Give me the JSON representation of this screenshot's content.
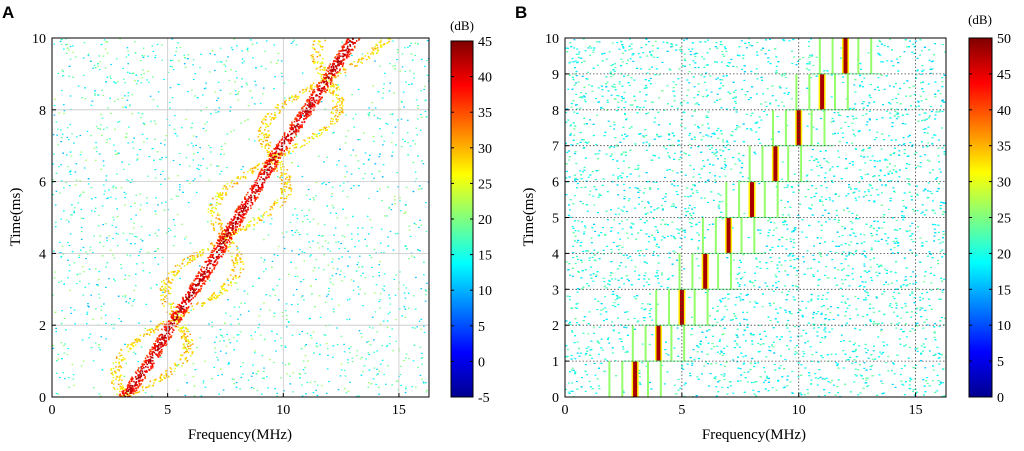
{
  "chart_data": [
    {
      "type": "heatmap",
      "panel_label": "A",
      "title": "",
      "xlabel": "Frequency(MHz)",
      "ylabel": "Time(ms)",
      "xlim": [
        0,
        16.3
      ],
      "ylim": [
        0,
        10
      ],
      "xticks": [
        "0",
        "5",
        "10",
        "15"
      ],
      "yticks": [
        "0",
        "2",
        "4",
        "6",
        "8",
        "10"
      ],
      "grid": true,
      "colorbar": {
        "label": "(dB)",
        "min": -5,
        "max": 45,
        "ticks": [
          "45",
          "40",
          "35",
          "30",
          "25",
          "20",
          "15",
          "10",
          "5",
          "0",
          "-5"
        ]
      },
      "signal": "sinusoidal frequency sweep from 3 MHz at 0 ms to 13 MHz at 10 ms with ~45 dB main ridge and ~28 dB sidebands crossing at 2.2, 4.5, 6.7 and 8.8 ms",
      "main_ridge": {
        "time_ms": [
          0,
          1,
          2,
          2.2,
          3,
          4,
          4.5,
          5,
          6,
          6.7,
          7,
          8,
          8.8,
          9,
          10
        ],
        "freq_mhz": [
          3.1,
          4.2,
          5.1,
          5.3,
          6.1,
          7.1,
          7.5,
          8.0,
          9.0,
          9.6,
          9.9,
          11.0,
          11.8,
          12.0,
          13.0
        ]
      }
    },
    {
      "type": "heatmap",
      "panel_label": "B",
      "title": "",
      "xlabel": "Frequency(MHz)",
      "ylabel": "Time(ms)",
      "xlim": [
        0,
        16.3
      ],
      "ylim": [
        0,
        10
      ],
      "xticks": [
        "0",
        "5",
        "10",
        "15"
      ],
      "yticks": [
        "0",
        "1",
        "2",
        "3",
        "4",
        "5",
        "6",
        "7",
        "8",
        "9",
        "10"
      ],
      "grid": true,
      "colorbar": {
        "label": "(dB)",
        "min": 0,
        "max": 50,
        "ticks": [
          "50",
          "45",
          "40",
          "35",
          "30",
          "25",
          "20",
          "15",
          "10",
          "5",
          "0"
        ]
      },
      "signal": "stepped frequency: one 1 ms step per MHz, ~50 dB line at each step center with ~25 dB side lines",
      "steps": [
        {
          "t0": 0,
          "t1": 1,
          "freq_mhz": 3
        },
        {
          "t0": 1,
          "t1": 2,
          "freq_mhz": 4
        },
        {
          "t0": 2,
          "t1": 3,
          "freq_mhz": 5
        },
        {
          "t0": 3,
          "t1": 4,
          "freq_mhz": 6
        },
        {
          "t0": 4,
          "t1": 5,
          "freq_mhz": 7
        },
        {
          "t0": 5,
          "t1": 6,
          "freq_mhz": 8
        },
        {
          "t0": 6,
          "t1": 7,
          "freq_mhz": 9
        },
        {
          "t0": 7,
          "t1": 8,
          "freq_mhz": 10
        },
        {
          "t0": 8,
          "t1": 9,
          "freq_mhz": 11
        },
        {
          "t0": 9,
          "t1": 10,
          "freq_mhz": 12
        }
      ]
    }
  ]
}
